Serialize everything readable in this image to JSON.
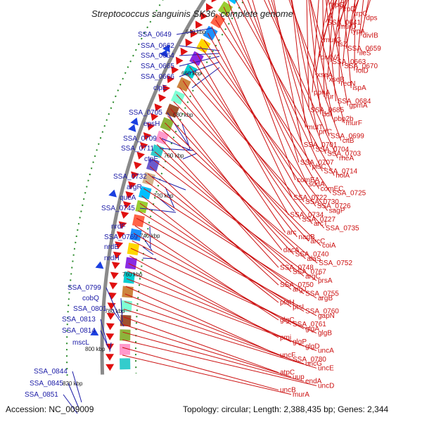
{
  "title": "Streptococcus sanguinis SK36, complete genome",
  "footer": {
    "accession": "Accession: NC_009009",
    "stats": "Topology: circular; Length: 2,388,435 bp; Genes: 2,344"
  },
  "kbp_labels": [
    "640 kbp",
    "660 kbp",
    "680 kbp",
    "700 kbp",
    "720 kbp",
    "740 kbp",
    "760 kbp",
    "780 kbp",
    "800 kbp",
    "820 kbp"
  ],
  "left_genes": [
    "SSA_0649",
    "SSA_0662",
    "SSA_0664",
    "SSA_0665",
    "SSA_0666",
    "clpE",
    "SSA_0705",
    "epsH",
    "SSA_0709",
    "SSA_0711",
    "ctpE",
    "SSA_0732",
    "argR",
    "queA",
    "SSA_0745",
    "nrdF",
    "SSA_0769",
    "nrdE",
    "nrdH",
    "SSA_0799",
    "cobQ",
    "SSA_0801",
    "SSA_0813",
    "SSA_0814",
    "mscL",
    "SSA_0844",
    "SSA_0845",
    "SSA_0851"
  ],
  "right_genes": [
    "trpG",
    "trpD",
    "trpC",
    "dps",
    "SSA_0641",
    "murD",
    "typA",
    "divIB",
    "murG",
    "ftsZ",
    "SSA_0659",
    "ileS",
    "divIVA",
    "SSA_0663",
    "SSA_0670",
    "folD",
    "xseA",
    "xseB",
    "recN",
    "ispA",
    "pphA",
    "fur",
    "SSA_0684",
    "gpmA",
    "SSA_0685",
    "ddl",
    "pbp2b",
    "murF",
    "mutT",
    "prfC",
    "SSA_0699",
    "citB",
    "SSA_0701",
    "SSA_0704",
    "SSA_0703",
    "rheA",
    "SSA_0707",
    "plsC",
    "SSA_0714",
    "holA",
    "comEA",
    "sodA",
    "comEC",
    "SSA_0725",
    "SSA_0722",
    "SSA_0730",
    "SSA_0726",
    "sagP",
    "SSA_0734",
    "SSA_0727",
    "arcT",
    "SSA_0735",
    "arc",
    "nagB",
    "arcC",
    "coiA",
    "dacA",
    "SSA_0740",
    "alaS",
    "SSA_0752",
    "SSA_0748",
    "SSA_0767",
    "argC",
    "prsA",
    "SSA_0750",
    "argJ",
    "SSA_0755",
    "argB",
    "ptsH",
    "ptsI",
    "SSA_0760",
    "gapN",
    "glgC",
    "SSA_0761",
    "glgA",
    "glgB",
    "pmi",
    "glgP",
    "glgD",
    "uncA",
    "uncF",
    "SSA_0780",
    "uncG",
    "uncE",
    "atpC",
    "uup",
    "endA",
    "uncD",
    "uncB",
    "murA"
  ],
  "colors": {
    "left_label": "#1a1aa6",
    "right_label": "#cc1111",
    "backbone": "#7a7a7a",
    "forward_gene": "#1a3fe0",
    "reverse_gene": "#e01010",
    "tick": "#2a8a2a"
  }
}
